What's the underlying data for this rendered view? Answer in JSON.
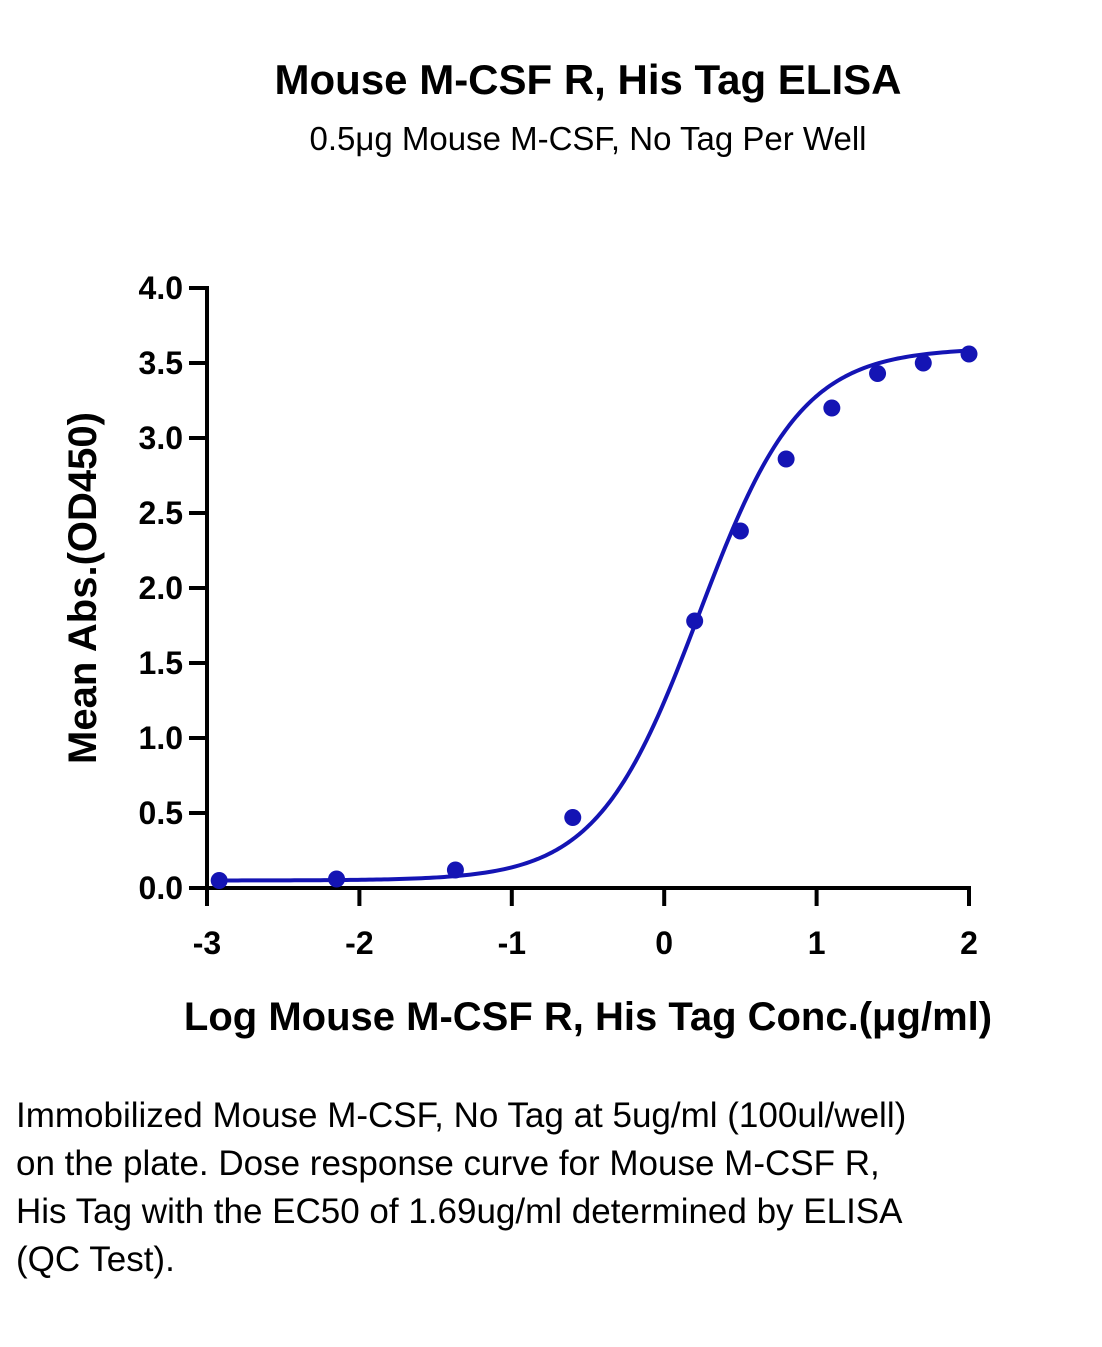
{
  "chart_data": {
    "type": "line",
    "title": "Mouse M-CSF R, His Tag ELISA",
    "subtitle": "0.5μg Mouse M-CSF, No Tag Per Well",
    "xlabel": "Log Mouse M-CSF R, His Tag Conc.(μg/ml)",
    "ylabel": "Mean Abs.(OD450)",
    "xlim": [
      -3,
      2
    ],
    "ylim": [
      0,
      4
    ],
    "xticks": [
      "-3",
      "-2",
      "-1",
      "0",
      "1",
      "2"
    ],
    "yticks": [
      "0.0",
      "0.5",
      "1.0",
      "1.5",
      "2.0",
      "2.5",
      "3.0",
      "3.5",
      "4.0"
    ],
    "grid": false,
    "color": "#1414b4",
    "points": {
      "x": [
        -2.92,
        -2.15,
        -1.37,
        -0.6,
        0.2,
        0.5,
        0.8,
        1.1,
        1.4,
        1.7,
        2.0
      ],
      "y": [
        0.05,
        0.06,
        0.12,
        0.47,
        1.78,
        2.38,
        2.86,
        3.2,
        3.43,
        3.5,
        3.56
      ]
    },
    "fit": {
      "bottom": 0.05,
      "top": 3.6,
      "logEC50": 0.228,
      "hill": 1.3
    }
  },
  "caption": "Immobilized Mouse M-CSF, No Tag at 5ug/ml (100ul/well) on the plate. Dose response curve for Mouse M-CSF R, His Tag with the EC50 of 1.69ug/ml determined by ELISA (QC Test)."
}
